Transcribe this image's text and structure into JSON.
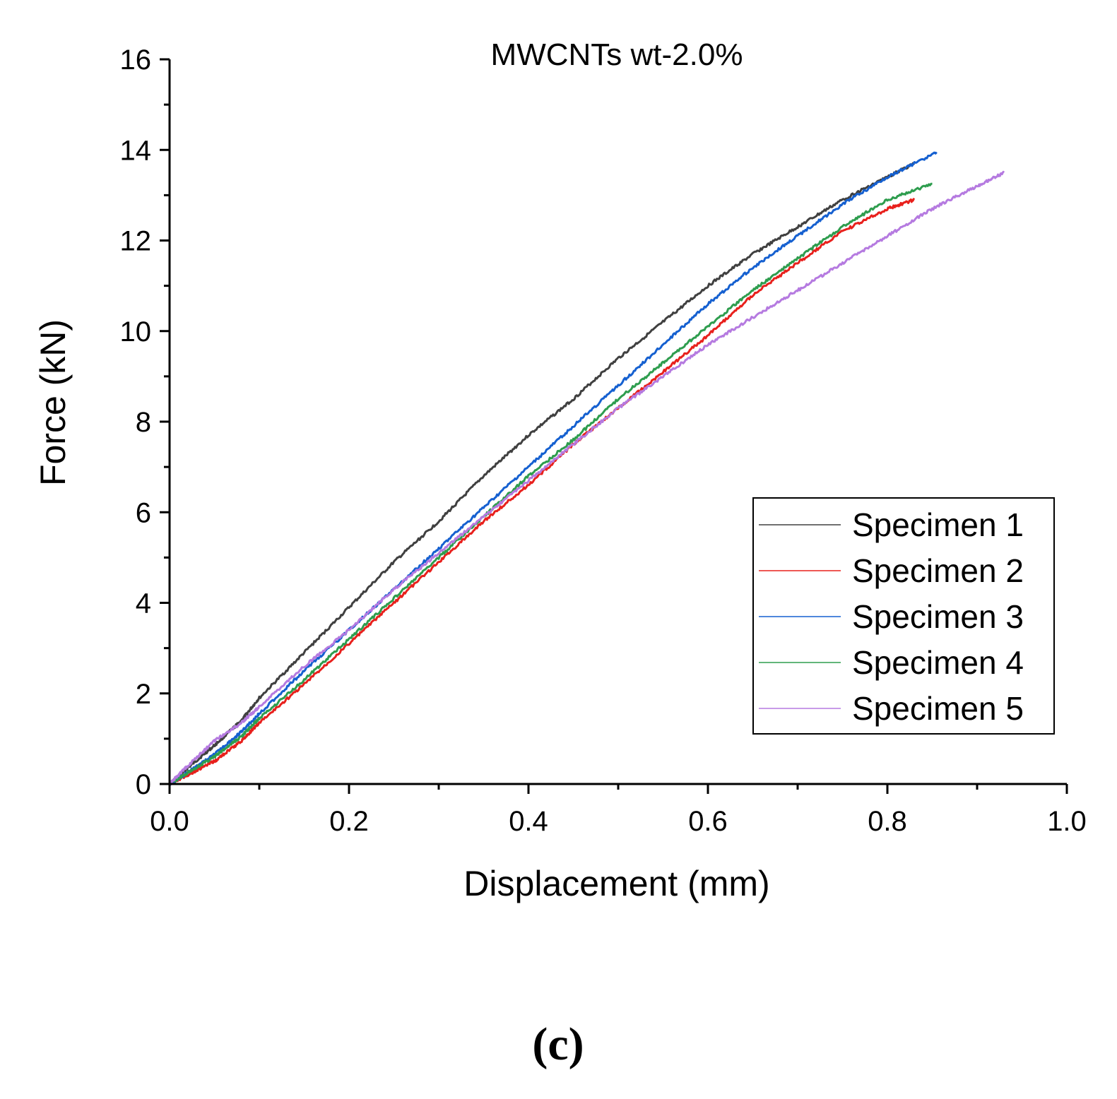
{
  "chart_data": {
    "type": "line",
    "title": "MWCNTs wt-2.0%",
    "xlabel": "Displacement (mm)",
    "ylabel": "Force (kN)",
    "xlim": [
      0.0,
      1.0
    ],
    "ylim": [
      0,
      16
    ],
    "xticks": [
      "0.0",
      "0.2",
      "0.4",
      "0.6",
      "0.8",
      "1.0"
    ],
    "yticks": [
      "0",
      "2",
      "4",
      "6",
      "8",
      "10",
      "12",
      "14",
      "16"
    ],
    "legend_position": "right-middle",
    "panel_label": "(c)",
    "series": [
      {
        "name": "Specimen 1",
        "color": "#404040",
        "x": [
          0.0,
          0.02,
          0.05,
          0.08,
          0.1,
          0.15,
          0.2,
          0.25,
          0.3,
          0.35,
          0.4,
          0.45,
          0.5,
          0.55,
          0.6,
          0.65,
          0.7,
          0.75,
          0.8,
          0.83
        ],
        "y": [
          0.0,
          0.35,
          0.85,
          1.4,
          1.9,
          2.9,
          3.9,
          4.9,
          5.8,
          6.8,
          7.7,
          8.5,
          9.4,
          10.2,
          11.0,
          11.7,
          12.3,
          12.9,
          13.4,
          13.7
        ]
      },
      {
        "name": "Specimen 2",
        "color": "#e8201c",
        "x": [
          0.0,
          0.02,
          0.05,
          0.08,
          0.1,
          0.15,
          0.2,
          0.25,
          0.3,
          0.35,
          0.4,
          0.45,
          0.5,
          0.55,
          0.6,
          0.65,
          0.7,
          0.75,
          0.8,
          0.83
        ],
        "y": [
          0.0,
          0.2,
          0.5,
          0.95,
          1.35,
          2.2,
          3.1,
          4.0,
          4.9,
          5.8,
          6.6,
          7.5,
          8.3,
          9.1,
          9.9,
          10.8,
          11.5,
          12.2,
          12.7,
          12.9
        ]
      },
      {
        "name": "Specimen 3",
        "color": "#1560d0",
        "x": [
          0.0,
          0.02,
          0.05,
          0.08,
          0.1,
          0.15,
          0.2,
          0.25,
          0.3,
          0.35,
          0.4,
          0.45,
          0.5,
          0.55,
          0.6,
          0.65,
          0.7,
          0.75,
          0.8,
          0.855
        ],
        "y": [
          0.0,
          0.25,
          0.65,
          1.15,
          1.55,
          2.5,
          3.4,
          4.3,
          5.2,
          6.1,
          7.0,
          7.9,
          8.8,
          9.7,
          10.6,
          11.4,
          12.1,
          12.8,
          13.4,
          13.95
        ]
      },
      {
        "name": "Specimen 4",
        "color": "#2e9d4e",
        "x": [
          0.0,
          0.02,
          0.05,
          0.08,
          0.1,
          0.15,
          0.2,
          0.25,
          0.3,
          0.35,
          0.4,
          0.45,
          0.5,
          0.55,
          0.6,
          0.65,
          0.7,
          0.75,
          0.8,
          0.85
        ],
        "y": [
          0.0,
          0.25,
          0.6,
          1.05,
          1.45,
          2.3,
          3.2,
          4.1,
          5.0,
          5.9,
          6.8,
          7.6,
          8.5,
          9.3,
          10.1,
          10.9,
          11.6,
          12.3,
          12.9,
          13.25
        ]
      },
      {
        "name": "Specimen 5",
        "color": "#b57ae0",
        "x": [
          0.0,
          0.02,
          0.05,
          0.08,
          0.1,
          0.15,
          0.2,
          0.25,
          0.3,
          0.35,
          0.4,
          0.45,
          0.5,
          0.55,
          0.6,
          0.65,
          0.7,
          0.75,
          0.8,
          0.85,
          0.9,
          0.93
        ],
        "y": [
          0.0,
          0.4,
          0.95,
          1.35,
          1.7,
          2.6,
          3.4,
          4.3,
          5.1,
          5.9,
          6.7,
          7.5,
          8.3,
          9.0,
          9.7,
          10.3,
          10.9,
          11.5,
          12.1,
          12.7,
          13.2,
          13.5
        ]
      }
    ]
  }
}
